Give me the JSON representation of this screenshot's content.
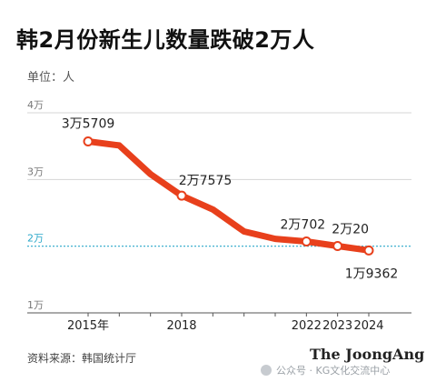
{
  "header": {
    "title": "韩2月份新生儿数量跌破2万人",
    "unit": "单位：人"
  },
  "footer": {
    "source": "资料来源：韩国统计厅",
    "brand": "The JoongAng",
    "watermark": "公众号 · KG文化交流中心"
  },
  "chart_data": {
    "type": "line",
    "x": [
      2015,
      2016,
      2017,
      2018,
      2019,
      2020,
      2021,
      2022,
      2023,
      2024
    ],
    "series": [
      {
        "values": [
          35709,
          35100,
          30800,
          27575,
          25500,
          22200,
          21100,
          20702,
          20020,
          19362
        ],
        "color": "#e8401c"
      }
    ],
    "markers": [
      {
        "x": 2015,
        "label": "3万5709"
      },
      {
        "x": 2018,
        "label": "2万7575"
      },
      {
        "x": 2022,
        "label": "2万702"
      },
      {
        "x": 2023,
        "label": "2万20"
      },
      {
        "x": 2024,
        "label": "1万9362"
      }
    ],
    "xticks": [
      {
        "x": 2015,
        "label": "2015年"
      },
      {
        "x": 2018,
        "label": "2018"
      },
      {
        "x": 2022,
        "label": "2022"
      },
      {
        "x": 2023,
        "label": "2023"
      },
      {
        "x": 2024,
        "label": "2024"
      }
    ],
    "yticks": [
      {
        "y": 40000,
        "label": "4万"
      },
      {
        "y": 30000,
        "label": "3万"
      },
      {
        "y": 20000,
        "label": "2万"
      },
      {
        "y": 10000,
        "label": "1万"
      }
    ],
    "ylim": [
      10000,
      40000
    ],
    "reference_line": {
      "y": 20000,
      "color": "#2aa7c9"
    },
    "grid": true
  }
}
